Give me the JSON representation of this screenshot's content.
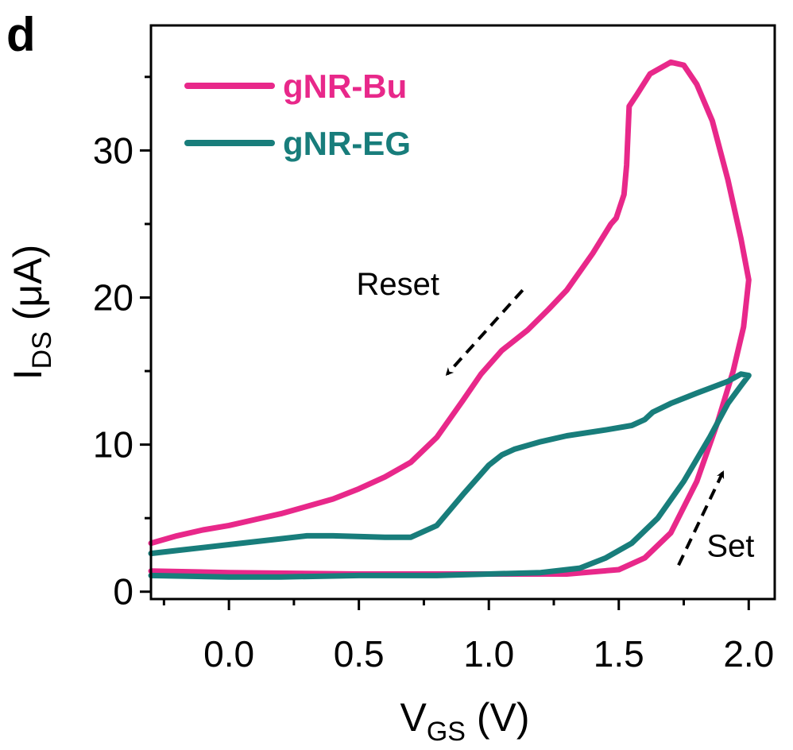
{
  "chart_data": {
    "type": "line",
    "panel_label": "d",
    "xlabel": {
      "main": "V",
      "sub": "GS",
      "unit": " (V)"
    },
    "ylabel": {
      "main": "I",
      "sub": "DS",
      "unit": " (μA)"
    },
    "xlim": [
      -0.3,
      2.1
    ],
    "ylim": [
      -0.5,
      38.5
    ],
    "x_ticks": [
      0.0,
      0.5,
      1.0,
      1.5,
      2.0
    ],
    "x_tick_labels": [
      "0.0",
      "0.5",
      "1.0",
      "1.5",
      "2.0"
    ],
    "y_ticks": [
      0,
      10,
      20,
      30
    ],
    "y_tick_labels": [
      "0",
      "10",
      "20",
      "30"
    ],
    "grid": false,
    "legend_position": "top-left",
    "series": [
      {
        "name": "gNR-Bu",
        "color": "#e8288a",
        "points": [
          [
            -0.3,
            1.4
          ],
          [
            0.0,
            1.3
          ],
          [
            0.5,
            1.2
          ],
          [
            1.0,
            1.2
          ],
          [
            1.3,
            1.2
          ],
          [
            1.5,
            1.5
          ],
          [
            1.6,
            2.3
          ],
          [
            1.7,
            4.0
          ],
          [
            1.8,
            7.5
          ],
          [
            1.88,
            11.5
          ],
          [
            1.94,
            15.0
          ],
          [
            1.98,
            18.0
          ],
          [
            2.0,
            21.2
          ],
          [
            1.97,
            24.0
          ],
          [
            1.92,
            28.0
          ],
          [
            1.86,
            32.0
          ],
          [
            1.8,
            34.5
          ],
          [
            1.75,
            35.8
          ],
          [
            1.7,
            36.0
          ],
          [
            1.62,
            35.2
          ],
          [
            1.57,
            33.8
          ],
          [
            1.54,
            33.0
          ],
          [
            1.53,
            29.0
          ],
          [
            1.52,
            27.0
          ],
          [
            1.49,
            25.4
          ],
          [
            1.47,
            25.0
          ],
          [
            1.4,
            23.0
          ],
          [
            1.3,
            20.5
          ],
          [
            1.23,
            19.2
          ],
          [
            1.15,
            17.8
          ],
          [
            1.05,
            16.4
          ],
          [
            0.97,
            14.8
          ],
          [
            0.9,
            13.0
          ],
          [
            0.8,
            10.5
          ],
          [
            0.7,
            8.8
          ],
          [
            0.6,
            7.8
          ],
          [
            0.5,
            7.0
          ],
          [
            0.4,
            6.3
          ],
          [
            0.3,
            5.8
          ],
          [
            0.2,
            5.3
          ],
          [
            0.1,
            4.9
          ],
          [
            0.0,
            4.5
          ],
          [
            -0.1,
            4.2
          ],
          [
            -0.2,
            3.8
          ],
          [
            -0.3,
            3.3
          ]
        ]
      },
      {
        "name": "gNR-EG",
        "color": "#187d7b",
        "points": [
          [
            -0.3,
            1.1
          ],
          [
            0.0,
            1.0
          ],
          [
            0.2,
            1.0
          ],
          [
            0.5,
            1.1
          ],
          [
            0.8,
            1.1
          ],
          [
            1.0,
            1.2
          ],
          [
            1.2,
            1.3
          ],
          [
            1.35,
            1.6
          ],
          [
            1.45,
            2.3
          ],
          [
            1.55,
            3.3
          ],
          [
            1.65,
            5.0
          ],
          [
            1.75,
            7.5
          ],
          [
            1.85,
            10.5
          ],
          [
            1.92,
            12.8
          ],
          [
            1.97,
            14.0
          ],
          [
            2.0,
            14.7
          ],
          [
            1.97,
            14.8
          ],
          [
            1.92,
            14.3
          ],
          [
            1.8,
            13.5
          ],
          [
            1.7,
            12.8
          ],
          [
            1.63,
            12.2
          ],
          [
            1.6,
            11.7
          ],
          [
            1.55,
            11.3
          ],
          [
            1.45,
            11.0
          ],
          [
            1.3,
            10.6
          ],
          [
            1.2,
            10.2
          ],
          [
            1.1,
            9.7
          ],
          [
            1.05,
            9.3
          ],
          [
            1.0,
            8.6
          ],
          [
            0.9,
            6.6
          ],
          [
            0.8,
            4.5
          ],
          [
            0.7,
            3.7
          ],
          [
            0.6,
            3.7
          ],
          [
            0.4,
            3.8
          ],
          [
            0.3,
            3.8
          ],
          [
            0.2,
            3.6
          ],
          [
            0.0,
            3.2
          ],
          [
            -0.2,
            2.8
          ],
          [
            -0.3,
            2.6
          ]
        ]
      }
    ],
    "annotations": [
      {
        "text": "Reset",
        "x": 0.65,
        "y": 20.2
      },
      {
        "text": "Set",
        "x": 1.93,
        "y": 2.4
      }
    ],
    "arrows": [
      {
        "label": "reset",
        "from": [
          1.13,
          20.5
        ],
        "to": [
          0.84,
          14.8
        ]
      },
      {
        "label": "set",
        "from": [
          1.73,
          1.8
        ],
        "to": [
          1.9,
          8.1
        ]
      }
    ]
  }
}
